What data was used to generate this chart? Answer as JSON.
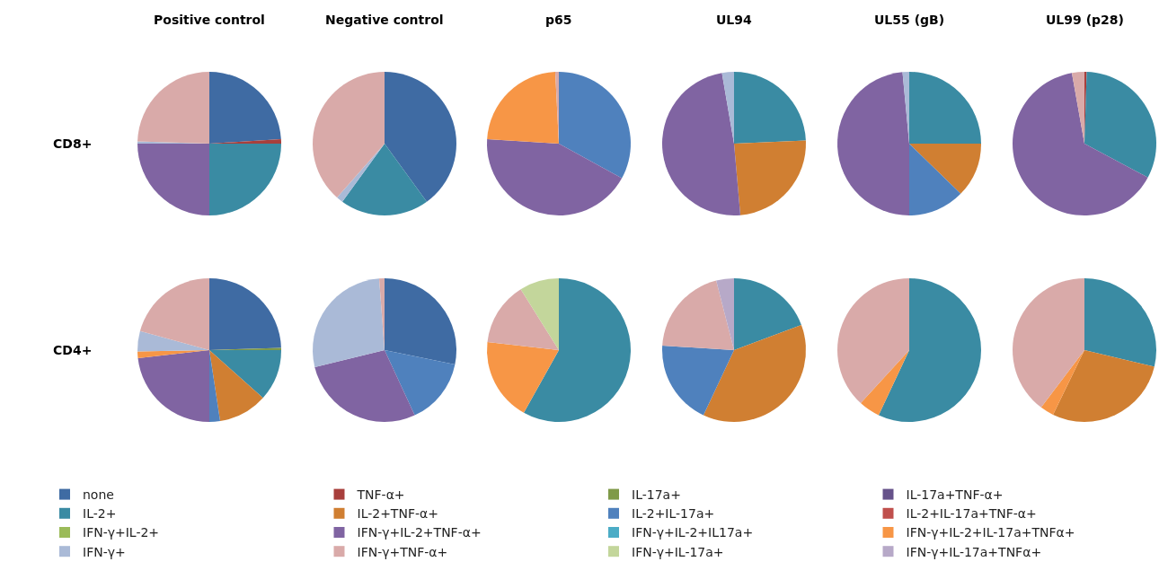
{
  "chart_data": [
    {
      "type": "pie",
      "title": "Positive control",
      "ylabel": "CD8+",
      "legend": "bottom",
      "categories": [
        "none",
        "TNF-α+",
        "IL-17a+",
        "IL-17a+TNF-α+",
        "IL-2+",
        "IL-2+TNF-α+",
        "IL-2+IL-17a+",
        "IL-2+IL-17a+TNF-α+",
        "IFN-γ+IL-2+",
        "IFN-γ+IL-2+TNF-α+",
        "IFN-γ+IL-2+IL17a+",
        "IFN-γ+IL-2+IL-17a+TNFα+",
        "IFN-γ+",
        "IFN-γ+TNF-α+",
        "IFN-γ+IL-17a+",
        "IFN-γ+IL-17a+TNFα+"
      ],
      "colors": [
        "#3f6ba3",
        "#a83f3c",
        "#7f9a48",
        "#66528a",
        "#3a8ba3",
        "#d07f32",
        "#4f81bd",
        "#c0504d",
        "#9bbb59",
        "#8064a2",
        "#4bacc6",
        "#f79646",
        "#aabad7",
        "#d9aaa9",
        "#c3d69b",
        "#b7a9c8"
      ],
      "values": [
        24,
        1,
        0,
        0,
        25,
        0,
        0,
        0,
        0,
        25,
        0,
        0,
        0.5,
        24.5,
        0,
        0
      ]
    },
    {
      "type": "pie",
      "title": "Negative control",
      "colors": [
        "#3f6ba3",
        "#a83f3c",
        "#7f9a48",
        "#66528a",
        "#3a8ba3",
        "#d07f32",
        "#4f81bd",
        "#c0504d",
        "#9bbb59",
        "#8064a2",
        "#4bacc6",
        "#f79646",
        "#aabad7",
        "#d9aaa9",
        "#c3d69b",
        "#b7a9c8"
      ],
      "values": [
        40,
        0,
        0,
        0,
        20,
        0,
        0,
        0,
        0,
        0,
        0,
        0,
        1.5,
        38.5,
        0,
        0
      ]
    },
    {
      "type": "pie",
      "title": "p65",
      "colors": [
        "#3f6ba3",
        "#a83f3c",
        "#7f9a48",
        "#66528a",
        "#3a8ba3",
        "#d07f32",
        "#4f81bd",
        "#c0504d",
        "#9bbb59",
        "#8064a2",
        "#4bacc6",
        "#f79646",
        "#aabad7",
        "#d9aaa9",
        "#c3d69b",
        "#b7a9c8"
      ],
      "values": [
        0,
        0,
        0,
        0,
        0,
        0,
        33,
        0,
        0,
        43,
        0,
        23.2,
        0,
        0.8,
        0,
        0
      ]
    },
    {
      "type": "pie",
      "title": "UL94",
      "colors": [
        "#3f6ba3",
        "#a83f3c",
        "#7f9a48",
        "#66528a",
        "#3a8ba3",
        "#d07f32",
        "#4f81bd",
        "#c0504d",
        "#9bbb59",
        "#8064a2",
        "#4bacc6",
        "#f79646",
        "#aabad7",
        "#d9aaa9",
        "#c3d69b",
        "#b7a9c8"
      ],
      "values": [
        0,
        0,
        0,
        0,
        24.3,
        24.3,
        0,
        0,
        0,
        48.7,
        0,
        0,
        2.7,
        0,
        0,
        0
      ]
    },
    {
      "type": "pie",
      "title": "UL55 (gB)",
      "colors": [
        "#3f6ba3",
        "#a83f3c",
        "#7f9a48",
        "#66528a",
        "#3a8ba3",
        "#d07f32",
        "#4f81bd",
        "#c0504d",
        "#9bbb59",
        "#8064a2",
        "#4bacc6",
        "#f79646",
        "#aabad7",
        "#d9aaa9",
        "#c3d69b",
        "#b7a9c8"
      ],
      "values": [
        0,
        0,
        0,
        0,
        25,
        12.3,
        12.7,
        0,
        0,
        48.5,
        0,
        0,
        1.5,
        0,
        0,
        0
      ]
    },
    {
      "type": "pie",
      "title": "UL99 (p28)",
      "colors": [
        "#3f6ba3",
        "#a83f3c",
        "#7f9a48",
        "#66528a",
        "#3a8ba3",
        "#d07f32",
        "#4f81bd",
        "#c0504d",
        "#9bbb59",
        "#8064a2",
        "#4bacc6",
        "#f79646",
        "#aabad7",
        "#d9aaa9",
        "#c3d69b",
        "#b7a9c8"
      ],
      "values": [
        0,
        0.5,
        0,
        0,
        32.3,
        0,
        0,
        0,
        0,
        64.4,
        0,
        0,
        0,
        2.8,
        0,
        0
      ]
    },
    {
      "type": "pie",
      "ylabel": "CD4+",
      "colors": [
        "#3f6ba3",
        "#a83f3c",
        "#7f9a48",
        "#66528a",
        "#3a8ba3",
        "#d07f32",
        "#4f81bd",
        "#c0504d",
        "#9bbb59",
        "#8064a2",
        "#4bacc6",
        "#f79646",
        "#aabad7",
        "#d9aaa9",
        "#c3d69b",
        "#b7a9c8"
      ],
      "values": [
        24.5,
        0,
        0.5,
        0,
        11.6,
        11,
        2.4,
        0,
        0,
        23.2,
        0,
        1.5,
        4.6,
        20.7,
        0,
        0
      ]
    },
    {
      "type": "pie",
      "colors": [
        "#3f6ba3",
        "#a83f3c",
        "#7f9a48",
        "#66528a",
        "#3a8ba3",
        "#d07f32",
        "#4f81bd",
        "#c0504d",
        "#9bbb59",
        "#8064a2",
        "#4bacc6",
        "#f79646",
        "#aabad7",
        "#d9aaa9",
        "#c3d69b",
        "#b7a9c8"
      ],
      "values": [
        28.2,
        0,
        0,
        0,
        0,
        0,
        14.9,
        0,
        0,
        28.1,
        0,
        0,
        27.6,
        1.2,
        0,
        0
      ]
    },
    {
      "type": "pie",
      "colors": [
        "#3f6ba3",
        "#a83f3c",
        "#7f9a48",
        "#66528a",
        "#3a8ba3",
        "#d07f32",
        "#4f81bd",
        "#c0504d",
        "#9bbb59",
        "#8064a2",
        "#4bacc6",
        "#f79646",
        "#aabad7",
        "#d9aaa9",
        "#c3d69b",
        "#b7a9c8"
      ],
      "values": [
        0,
        0,
        0,
        0,
        58.1,
        0,
        0,
        0,
        0,
        0,
        0,
        18.7,
        0,
        14.3,
        8.9,
        0
      ]
    },
    {
      "type": "pie",
      "colors": [
        "#3f6ba3",
        "#a83f3c",
        "#7f9a48",
        "#66528a",
        "#3a8ba3",
        "#d07f32",
        "#4f81bd",
        "#c0504d",
        "#9bbb59",
        "#8064a2",
        "#4bacc6",
        "#f79646",
        "#aabad7",
        "#d9aaa9",
        "#c3d69b",
        "#b7a9c8"
      ],
      "values": [
        0,
        0,
        0,
        0,
        19.3,
        37.7,
        19,
        0,
        0,
        0,
        0,
        0,
        0,
        20,
        0,
        4
      ]
    },
    {
      "type": "pie",
      "colors": [
        "#3f6ba3",
        "#a83f3c",
        "#7f9a48",
        "#66528a",
        "#3a8ba3",
        "#d07f32",
        "#4f81bd",
        "#c0504d",
        "#9bbb59",
        "#8064a2",
        "#4bacc6",
        "#f79646",
        "#aabad7",
        "#d9aaa9",
        "#c3d69b",
        "#b7a9c8"
      ],
      "values": [
        0,
        0,
        0,
        0,
        57,
        0,
        0,
        0,
        0,
        0,
        0,
        4.8,
        0,
        38.2,
        0,
        0
      ]
    },
    {
      "type": "pie",
      "colors": [
        "#3f6ba3",
        "#a83f3c",
        "#7f9a48",
        "#66528a",
        "#3a8ba3",
        "#d07f32",
        "#4f81bd",
        "#c0504d",
        "#9bbb59",
        "#8064a2",
        "#4bacc6",
        "#f79646",
        "#aabad7",
        "#d9aaa9",
        "#c3d69b",
        "#b7a9c8"
      ],
      "values": [
        0,
        0,
        0,
        0,
        28.7,
        28.5,
        0,
        0,
        0,
        0,
        0,
        3.1,
        0,
        39.7,
        0,
        0
      ]
    }
  ]
}
